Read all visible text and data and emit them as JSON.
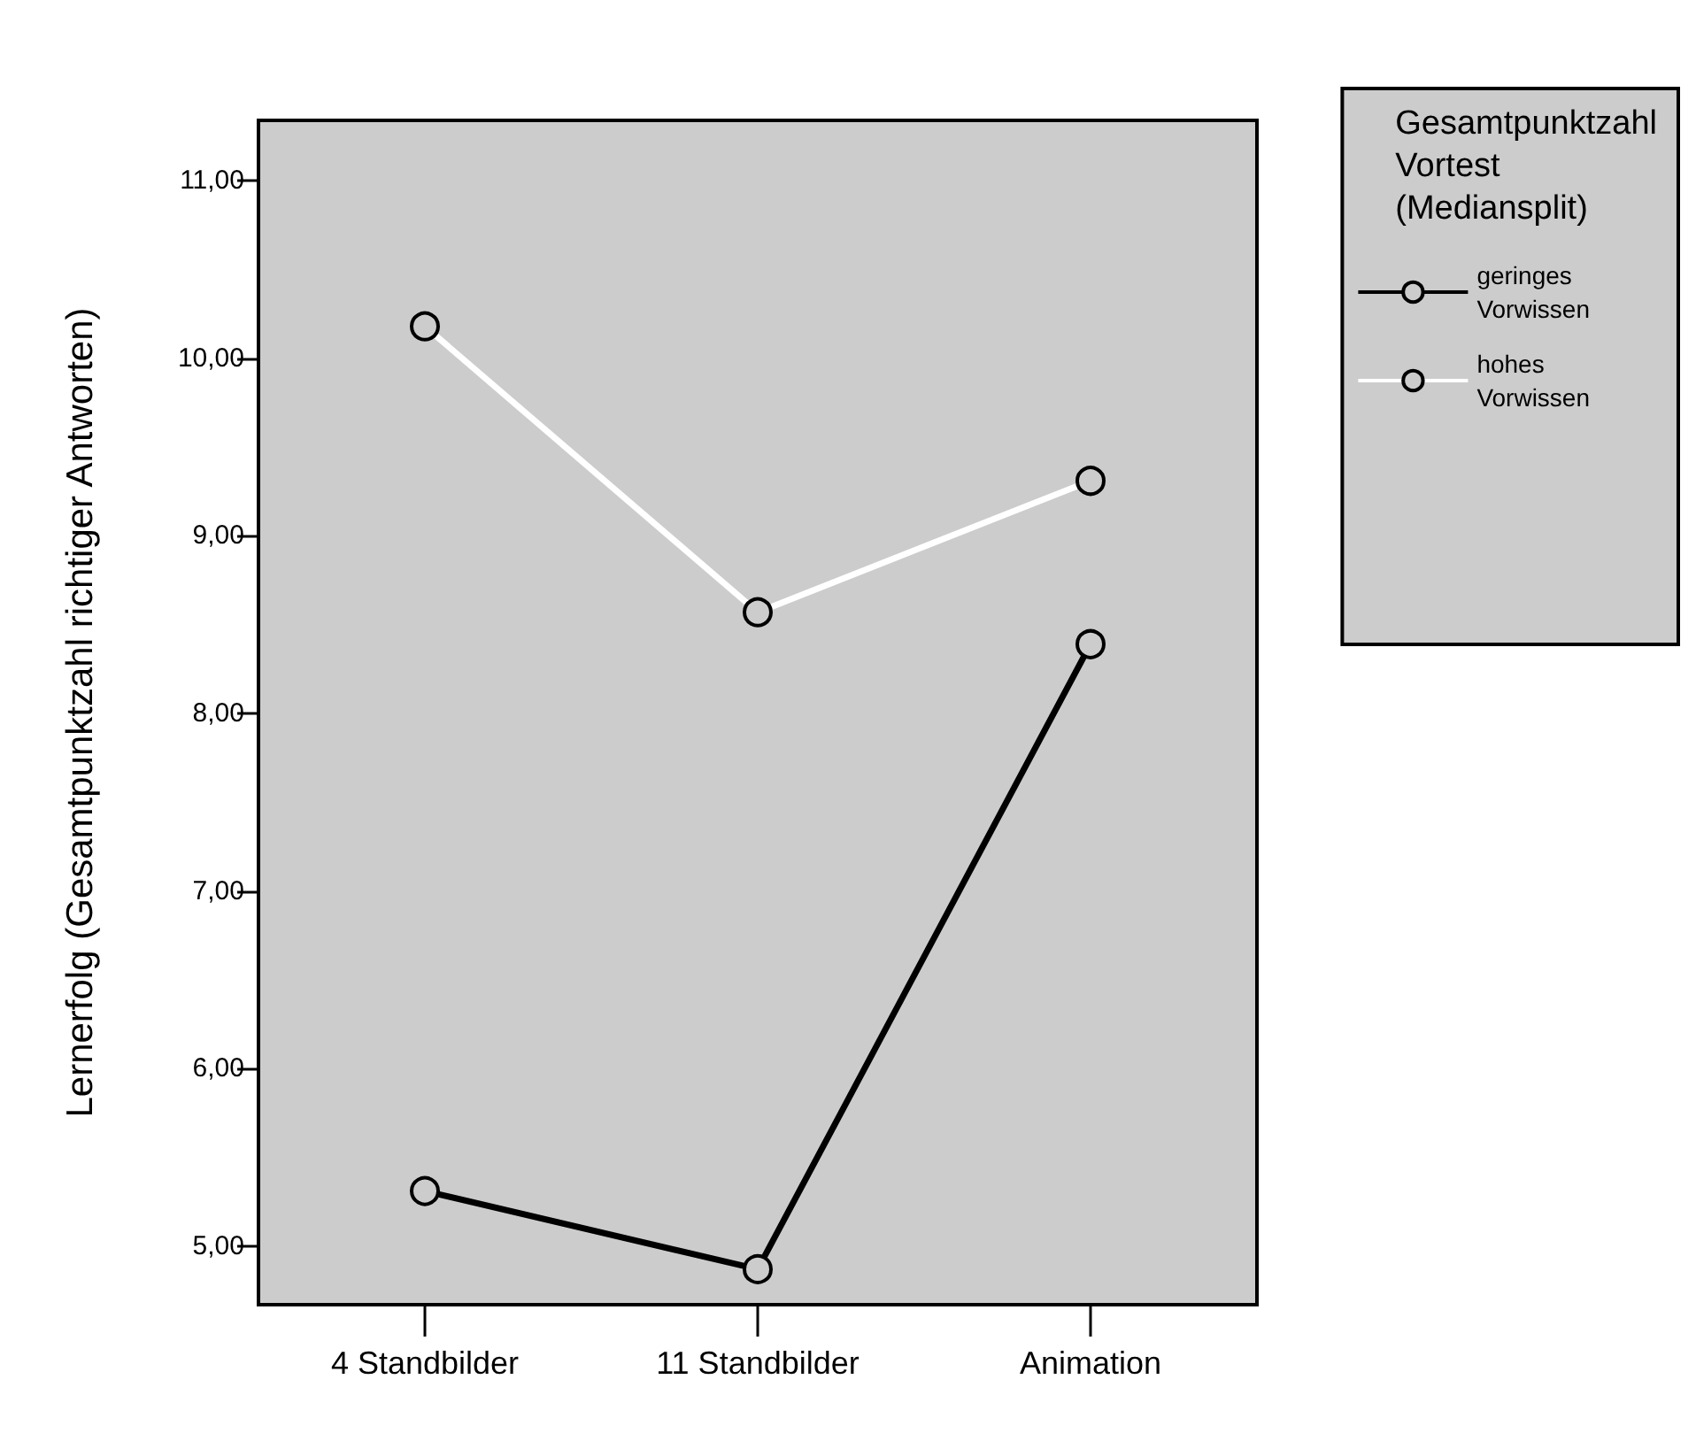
{
  "chart_data": {
    "type": "line",
    "ylabel": "Lernerfolg (Gesamtpunktzahl richtiger Antworten)",
    "legend_title": "Gesamtpunktzahl\nVortest\n(Mediansplit)",
    "categories": [
      "4 Standbilder",
      "11 Standbilder",
      "Animation"
    ],
    "series": [
      {
        "name": "geringes\nVorwissen",
        "color": "#000000",
        "values": [
          5.31,
          4.87,
          8.39
        ]
      },
      {
        "name": "hohes\nVorwissen",
        "color": "#ffffff",
        "values": [
          10.18,
          8.57,
          9.31
        ]
      }
    ],
    "ylim": [
      4.67,
      11.34
    ],
    "yticks": [
      {
        "value": 5,
        "label": "5,00"
      },
      {
        "value": 6,
        "label": "6,00"
      },
      {
        "value": 7,
        "label": "7,00"
      },
      {
        "value": 8,
        "label": "8,00"
      },
      {
        "value": 9,
        "label": "9,00"
      },
      {
        "value": 10,
        "label": "10,00"
      },
      {
        "value": 11,
        "label": "11,00"
      }
    ],
    "grid": false,
    "legend": "right",
    "marker": "circle",
    "line_style": "solid"
  }
}
